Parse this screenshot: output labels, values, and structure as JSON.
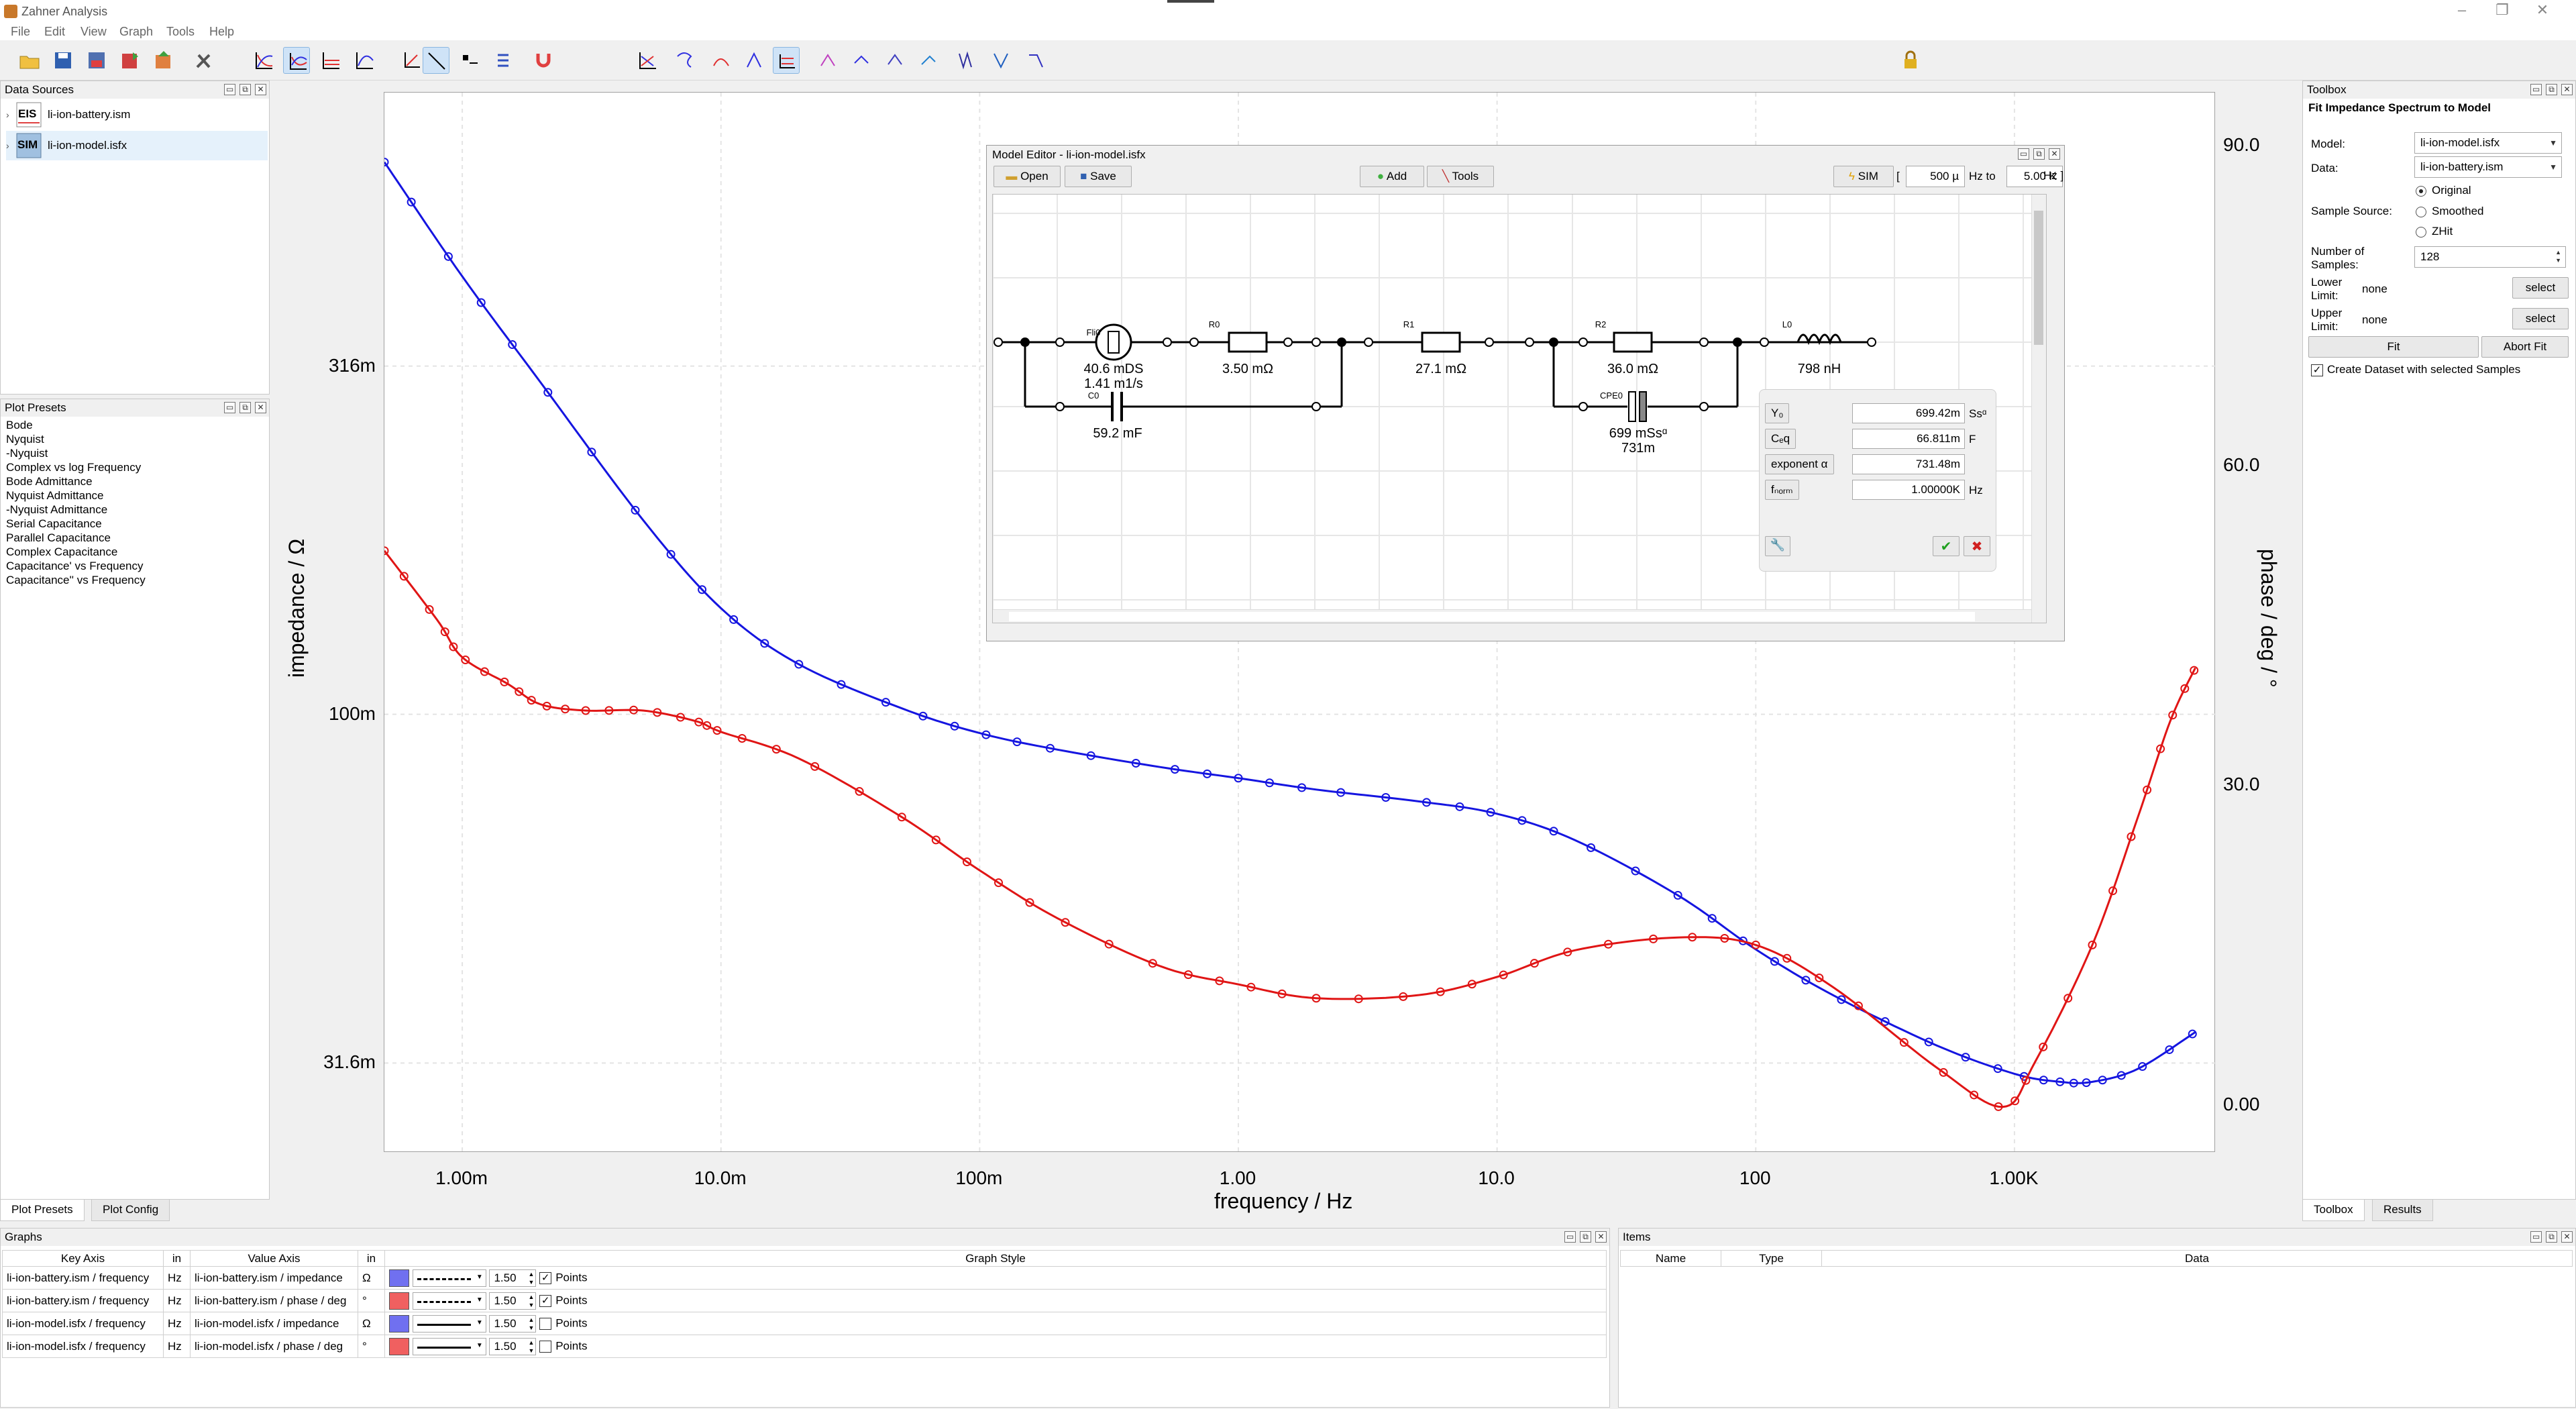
{
  "window": {
    "title": "Zahner Analysis"
  },
  "menu": [
    "File",
    "Edit",
    "View",
    "Graph",
    "Tools",
    "Help"
  ],
  "data_sources": {
    "title": "Data Sources",
    "items": [
      {
        "badge": "EIS",
        "name": "li-ion-battery.ism"
      },
      {
        "badge": "SIM",
        "name": "li-ion-model.isfx"
      }
    ]
  },
  "plot_presets": {
    "title": "Plot Presets",
    "items": [
      "Bode",
      "Nyquist",
      "-Nyquist",
      "Complex vs log Frequency",
      "Bode Admittance",
      "Nyquist Admittance",
      "-Nyquist Admittance",
      "Serial Capacitance",
      "Parallel Capacitance",
      "Complex Capacitance",
      "Capacitance' vs Frequency",
      "Capacitance'' vs Frequency"
    ]
  },
  "left_tabs": [
    "Plot Presets",
    "Plot Config"
  ],
  "plot": {
    "xlabel": "frequency / Hz",
    "ylabel_left": "impedance / Ω",
    "ylabel_right": "phase / deg / °"
  },
  "chart_data": {
    "type": "line",
    "x_scale": "log",
    "y_left_scale": "log",
    "x_ticks": [
      {
        "v": 0.001,
        "label": "1.00m"
      },
      {
        "v": 0.01,
        "label": "10.0m"
      },
      {
        "v": 0.1,
        "label": "100m"
      },
      {
        "v": 1,
        "label": "1.00"
      },
      {
        "v": 10,
        "label": "10.0"
      },
      {
        "v": 100,
        "label": "100"
      },
      {
        "v": 1000,
        "label": "1.00K"
      }
    ],
    "y_left_ticks": [
      {
        "v": 0.316,
        "label": "316m"
      },
      {
        "v": 0.1,
        "label": "100m"
      },
      {
        "v": 0.0316,
        "label": "31.6m"
      }
    ],
    "y_right_ticks": [
      {
        "v": 90,
        "label": "90.0"
      },
      {
        "v": 60,
        "label": "60.0"
      },
      {
        "v": 30,
        "label": "30.0"
      },
      {
        "v": 0,
        "label": "0.00"
      }
    ],
    "xlim": [
      0.0005,
      6000
    ],
    "y_left_lim": [
      0.0235,
      0.78
    ],
    "y_right_lim": [
      -4.5,
      95
    ],
    "series": [
      {
        "axis": "left",
        "color": "#1515e0",
        "points": [
          [
            0.0005,
            0.62
          ],
          [
            0.001,
            0.425
          ],
          [
            0.002,
            0.3
          ],
          [
            0.005,
            0.19
          ],
          [
            0.01,
            0.142
          ],
          [
            0.02,
            0.118
          ],
          [
            0.05,
            0.102
          ],
          [
            0.1,
            0.094
          ],
          [
            0.2,
            0.089
          ],
          [
            0.5,
            0.084
          ],
          [
            1,
            0.081
          ],
          [
            2,
            0.078
          ],
          [
            5,
            0.075
          ],
          [
            10,
            0.072
          ],
          [
            20,
            0.066
          ],
          [
            50,
            0.055
          ],
          [
            100,
            0.046
          ],
          [
            200,
            0.0395
          ],
          [
            500,
            0.0335
          ],
          [
            1000,
            0.0305
          ],
          [
            1500,
            0.0297
          ],
          [
            2000,
            0.0297
          ],
          [
            3000,
            0.031
          ],
          [
            5000,
            0.035
          ]
        ]
      },
      {
        "axis": "right",
        "color": "#e01515",
        "points": [
          [
            0.0005,
            52
          ],
          [
            0.0008,
            45.5
          ],
          [
            0.001,
            42
          ],
          [
            0.0015,
            39.5
          ],
          [
            0.002,
            37.6
          ],
          [
            0.003,
            37
          ],
          [
            0.005,
            37
          ],
          [
            0.008,
            36
          ],
          [
            0.01,
            35
          ],
          [
            0.02,
            32.5
          ],
          [
            0.05,
            27
          ],
          [
            0.1,
            22
          ],
          [
            0.2,
            17.5
          ],
          [
            0.5,
            13
          ],
          [
            1,
            11.3
          ],
          [
            2,
            10
          ],
          [
            5,
            10.3
          ],
          [
            10,
            12
          ],
          [
            20,
            14.5
          ],
          [
            50,
            15.7
          ],
          [
            100,
            15
          ],
          [
            200,
            11
          ],
          [
            500,
            3.5
          ],
          [
            900,
            -0.2
          ],
          [
            1200,
            4
          ],
          [
            2000,
            15
          ],
          [
            3000,
            27
          ],
          [
            4000,
            36
          ],
          [
            5000,
            41
          ]
        ]
      }
    ]
  },
  "model_editor": {
    "title": "Model Editor - li-ion-model.isfx",
    "open": "Open",
    "save": "Save",
    "add": "Add",
    "tools": "Tools",
    "sim": "SIM",
    "freq_from": "500 µ",
    "hz_to": "Hz to",
    "freq_to": "5.00 K",
    "hz": "Hz",
    "bracket_open": "[",
    "bracket_close": "]",
    "components": {
      "fli": {
        "name": "Fli0",
        "v1": "40.6 mDS",
        "v2": "1.41 m1/s"
      },
      "r0": {
        "name": "R0",
        "v1": "3.50 mΩ"
      },
      "c0": {
        "name": "C0",
        "v1": "59.2 mF"
      },
      "r1": {
        "name": "R1",
        "v1": "27.1 mΩ"
      },
      "r2": {
        "name": "R2",
        "v1": "36.0 mΩ"
      },
      "cpe": {
        "name": "CPE0",
        "v1": "699 mSsᵅ",
        "v2": "731m"
      },
      "l0": {
        "name": "L0",
        "v1": "798 nH"
      }
    },
    "popup": {
      "rows": [
        {
          "label": "Y₀",
          "value": "699.42m",
          "unit": "Ssᵅ"
        },
        {
          "label": "Cₑq",
          "value": "66.811m",
          "unit": "F"
        },
        {
          "label": "exponent α",
          "value": "731.48m",
          "unit": ""
        },
        {
          "label": "fₙₒᵣₘ",
          "value": "1.00000K",
          "unit": "Hz"
        }
      ]
    }
  },
  "toolbox": {
    "title": "Toolbox",
    "heading": "Fit Impedance Spectrum to Model",
    "model_label": "Model:",
    "model_value": "li-ion-model.isfx",
    "data_label": "Data:",
    "data_value": "li-ion-battery.ism",
    "original": "Original",
    "smoothed": "Smoothed",
    "zhit": "ZHit",
    "sample_source": "Sample Source:",
    "num_samples_1": "Number of",
    "num_samples_2": "Samples:",
    "num_samples_value": "128",
    "lower_1": "Lower",
    "lower_2": "Limit:",
    "lower_value": "none",
    "upper_1": "Upper",
    "upper_2": "Limit:",
    "upper_value": "none",
    "select": "select",
    "fit": "Fit",
    "abort_fit": "Abort Fit",
    "create_dataset": "Create Dataset with selected Samples"
  },
  "right_tabs": [
    "Toolbox",
    "Results"
  ],
  "graphs": {
    "title": "Graphs",
    "headers": [
      "Key Axis",
      "in",
      "Value Axis",
      "in",
      "Graph Style"
    ],
    "rows": [
      {
        "key": "li-ion-battery.ism / frequency",
        "kin": "Hz",
        "val": "li-ion-battery.ism / impedance",
        "vin": "Ω",
        "color": "#7070f0",
        "dash": true,
        "width": "1.50",
        "points": true,
        "points_label": "Points"
      },
      {
        "key": "li-ion-battery.ism / frequency",
        "kin": "Hz",
        "val": "li-ion-battery.ism / phase / deg",
        "vin": "°",
        "color": "#f06060",
        "dash": true,
        "width": "1.50",
        "points": true,
        "points_label": "Points"
      },
      {
        "key": "li-ion-model.isfx / frequency",
        "kin": "Hz",
        "val": "li-ion-model.isfx / impedance",
        "vin": "Ω",
        "color": "#7070f0",
        "dash": false,
        "width": "1.50",
        "points": false,
        "points_label": "Points"
      },
      {
        "key": "li-ion-model.isfx / frequency",
        "kin": "Hz",
        "val": "li-ion-model.isfx / phase / deg",
        "vin": "°",
        "color": "#f06060",
        "dash": false,
        "width": "1.50",
        "points": false,
        "points_label": "Points"
      }
    ]
  },
  "items": {
    "title": "Items",
    "headers": [
      "Name",
      "Type",
      "Data"
    ]
  }
}
